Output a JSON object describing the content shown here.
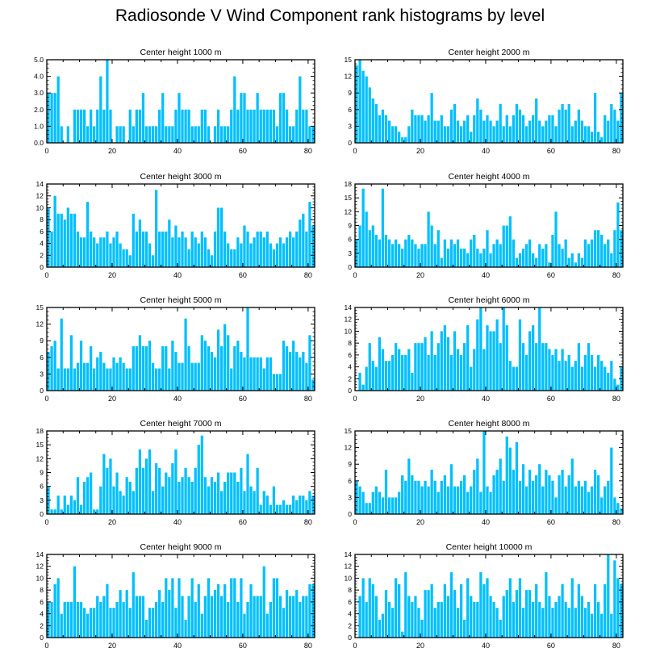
{
  "title": "Radiosonde V Wind Component rank histograms by level",
  "bar_color": "#00bfff",
  "chart_data": [
    {
      "type": "bar",
      "title": "Center height 1000 m",
      "xlim": [
        0,
        82
      ],
      "ylim": [
        0,
        5
      ],
      "xticks": [
        0,
        20,
        40,
        60,
        80
      ],
      "yticks": [
        "0.0",
        "1.0",
        "2.0",
        "3.0",
        "4.0",
        "5.0"
      ],
      "values": [
        3,
        3,
        3,
        4,
        1,
        0,
        1,
        0,
        2,
        2,
        2,
        2,
        1,
        2,
        1,
        2,
        4,
        2,
        5,
        2,
        0,
        1,
        1,
        1,
        0,
        2,
        1,
        2,
        2,
        3,
        1,
        1,
        1,
        1,
        2,
        3,
        1,
        1,
        1,
        2,
        3,
        2,
        2,
        2,
        1,
        1,
        1,
        2,
        2,
        1,
        0,
        1,
        2,
        1,
        1,
        1,
        2,
        4,
        2,
        3,
        3,
        2,
        2,
        2,
        3,
        2,
        2,
        2,
        2,
        2,
        1,
        3,
        3,
        2,
        1,
        1,
        2,
        4,
        2,
        2,
        1,
        1
      ]
    },
    {
      "type": "bar",
      "title": "Center height 2000 m",
      "xlim": [
        0,
        82
      ],
      "ylim": [
        0,
        15
      ],
      "xticks": [
        0,
        20,
        40,
        60,
        80
      ],
      "yticks": [
        "0",
        "3",
        "6",
        "9",
        "12",
        "15"
      ],
      "values": [
        14,
        15,
        13,
        12,
        10,
        8,
        7,
        5,
        6,
        5,
        4,
        3,
        3,
        2,
        1,
        1,
        3,
        6,
        5,
        5,
        5,
        4,
        5,
        9,
        4,
        4,
        5,
        3,
        3,
        6,
        7,
        4,
        3,
        4,
        5,
        2,
        5,
        8,
        6,
        4,
        5,
        4,
        3,
        4,
        7,
        3,
        5,
        3,
        5,
        7,
        6,
        5,
        3,
        4,
        5,
        8,
        4,
        3,
        4,
        5,
        5,
        3,
        6,
        7,
        6,
        7,
        3,
        4,
        6,
        4,
        3,
        3,
        2,
        9,
        2,
        1,
        5,
        4,
        7,
        6,
        4,
        9
      ]
    },
    {
      "type": "bar",
      "title": "Center height 3000 m",
      "xlim": [
        0,
        82
      ],
      "ylim": [
        0,
        14
      ],
      "xticks": [
        0,
        20,
        40,
        60,
        80
      ],
      "yticks": [
        "0",
        "2",
        "4",
        "6",
        "8",
        "10",
        "12",
        "14"
      ],
      "values": [
        10,
        6,
        12,
        9,
        9,
        8,
        10,
        9,
        9,
        6,
        5,
        5,
        11,
        6,
        5,
        4,
        5,
        5,
        6,
        4,
        5,
        6,
        4,
        3,
        3,
        2,
        9,
        6,
        8,
        6,
        6,
        4,
        2,
        13,
        6,
        6,
        6,
        8,
        5,
        7,
        5,
        6,
        5,
        3,
        6,
        5,
        4,
        6,
        5,
        3,
        2,
        6,
        10,
        10,
        6,
        4,
        3,
        3,
        5,
        4,
        7,
        6,
        4,
        5,
        6,
        6,
        5,
        6,
        4,
        3,
        4,
        5,
        4,
        5,
        6,
        5,
        6,
        8,
        9,
        6,
        11,
        7
      ]
    },
    {
      "type": "bar",
      "title": "Center height 4000 m",
      "xlim": [
        0,
        82
      ],
      "ylim": [
        0,
        18
      ],
      "xticks": [
        0,
        20,
        40,
        60,
        80
      ],
      "yticks": [
        "0",
        "3",
        "6",
        "9",
        "12",
        "15",
        "18"
      ],
      "values": [
        6,
        9,
        17,
        12,
        8,
        9,
        7,
        6,
        17,
        7,
        6,
        5,
        6,
        5,
        4,
        6,
        7,
        6,
        5,
        4,
        5,
        5,
        12,
        9,
        5,
        8,
        2,
        6,
        4,
        6,
        5,
        6,
        4,
        4,
        3,
        6,
        7,
        4,
        3,
        4,
        8,
        3,
        5,
        6,
        5,
        9,
        9,
        11,
        6,
        2,
        3,
        4,
        5,
        6,
        3,
        2,
        5,
        4,
        5,
        1,
        7,
        12,
        5,
        4,
        6,
        2,
        3,
        1,
        3,
        2,
        6,
        5,
        6,
        8,
        8,
        7,
        5,
        6,
        3,
        8,
        14,
        8
      ]
    },
    {
      "type": "bar",
      "title": "Center height 5000 m",
      "xlim": [
        0,
        82
      ],
      "ylim": [
        0,
        15
      ],
      "xticks": [
        0,
        20,
        40,
        60,
        80
      ],
      "yticks": [
        "0",
        "3",
        "6",
        "9",
        "12",
        "15"
      ],
      "values": [
        7,
        8,
        9,
        4,
        13,
        4,
        4,
        10,
        4,
        5,
        9,
        5,
        5,
        8,
        4,
        6,
        7,
        5,
        4,
        4,
        6,
        5,
        6,
        5,
        4,
        4,
        8,
        8,
        10,
        8,
        8,
        9,
        5,
        4,
        4,
        8,
        8,
        4,
        9,
        7,
        5,
        5,
        13,
        8,
        5,
        5,
        5,
        10,
        9,
        8,
        7,
        6,
        11,
        8,
        12,
        10,
        4,
        8,
        9,
        7,
        6,
        15,
        6,
        6,
        6,
        6,
        4,
        6,
        6,
        3,
        3,
        3,
        9,
        8,
        7,
        9,
        7,
        6,
        7,
        5,
        10,
        2
      ]
    },
    {
      "type": "bar",
      "title": "Center height 6000 m",
      "xlim": [
        0,
        82
      ],
      "ylim": [
        0,
        14
      ],
      "xticks": [
        0,
        20,
        40,
        60,
        80
      ],
      "yticks": [
        "0",
        "2",
        "4",
        "6",
        "8",
        "10",
        "12",
        "14"
      ],
      "values": [
        0,
        3,
        1,
        4,
        8,
        5,
        4,
        9,
        7,
        5,
        5,
        6,
        8,
        7,
        6,
        6,
        7,
        3,
        8,
        8,
        8,
        9,
        6,
        10,
        6,
        8,
        10,
        11,
        9,
        6,
        10,
        7,
        6,
        8,
        11,
        4,
        7,
        12,
        14,
        7,
        11,
        10,
        10,
        12,
        8,
        14,
        11,
        5,
        4,
        4,
        12,
        8,
        6,
        10,
        11,
        8,
        14,
        8,
        8,
        7,
        6,
        7,
        5,
        7,
        5,
        6,
        4,
        5,
        8,
        4,
        6,
        8,
        6,
        4,
        6,
        5,
        4,
        3,
        5,
        2,
        1,
        4
      ]
    },
    {
      "type": "bar",
      "title": "Center height 7000 m",
      "xlim": [
        0,
        82
      ],
      "ylim": [
        0,
        18
      ],
      "xticks": [
        0,
        20,
        40,
        60,
        80
      ],
      "yticks": [
        "0",
        "3",
        "6",
        "9",
        "12",
        "15",
        "18"
      ],
      "values": [
        6,
        1,
        1,
        4,
        1,
        4,
        2,
        4,
        3,
        8,
        2,
        7,
        8,
        9,
        1,
        1,
        6,
        13,
        10,
        12,
        6,
        9,
        5,
        4,
        8,
        7,
        5,
        10,
        14,
        10,
        12,
        14,
        5,
        11,
        10,
        6,
        9,
        8,
        11,
        14,
        7,
        8,
        10,
        8,
        7,
        10,
        15,
        17,
        8,
        6,
        8,
        7,
        9,
        5,
        7,
        9,
        9,
        9,
        7,
        10,
        5,
        13,
        6,
        5,
        10,
        2,
        5,
        4,
        2,
        6,
        2,
        2,
        3,
        2,
        2,
        4,
        3,
        4,
        4,
        3,
        5,
        4
      ]
    },
    {
      "type": "bar",
      "title": "Center height 8000 m",
      "xlim": [
        0,
        82
      ],
      "ylim": [
        0,
        15
      ],
      "xticks": [
        0,
        20,
        40,
        60,
        80
      ],
      "yticks": [
        "0",
        "3",
        "6",
        "9",
        "12",
        "15"
      ],
      "values": [
        6,
        5,
        4,
        2,
        2,
        4,
        5,
        4,
        3,
        8,
        3,
        3,
        3,
        4,
        7,
        6,
        10,
        7,
        6,
        6,
        5,
        6,
        5,
        8,
        6,
        4,
        6,
        7,
        5,
        9,
        5,
        5,
        6,
        7,
        4,
        5,
        8,
        10,
        4,
        15,
        5,
        4,
        7,
        8,
        10,
        6,
        14,
        12,
        8,
        13,
        6,
        9,
        5,
        8,
        6,
        7,
        9,
        5,
        8,
        7,
        6,
        3,
        7,
        8,
        5,
        7,
        10,
        5,
        6,
        5,
        6,
        4,
        5,
        8,
        7,
        3,
        5,
        6,
        12,
        3,
        2,
        1
      ]
    },
    {
      "type": "bar",
      "title": "Center height 9000 m",
      "xlim": [
        0,
        82
      ],
      "ylim": [
        0,
        14
      ],
      "xticks": [
        0,
        20,
        40,
        60,
        80
      ],
      "yticks": [
        "0",
        "2",
        "4",
        "6",
        "8",
        "10",
        "12",
        "14"
      ],
      "values": [
        6,
        6,
        9,
        10,
        4,
        6,
        6,
        6,
        12,
        6,
        6,
        5,
        4,
        5,
        5,
        7,
        6,
        7,
        9,
        5,
        5,
        6,
        8,
        6,
        8,
        5,
        11,
        7,
        7,
        7,
        3,
        5,
        5,
        6,
        8,
        6,
        10,
        8,
        10,
        5,
        10,
        7,
        3,
        7,
        10,
        6,
        9,
        4,
        7,
        10,
        7,
        8,
        9,
        7,
        9,
        6,
        10,
        10,
        6,
        10,
        4,
        6,
        9,
        7,
        7,
        7,
        12,
        4,
        6,
        10,
        10,
        7,
        5,
        8,
        7,
        7,
        8,
        6,
        7,
        7,
        9,
        9
      ]
    },
    {
      "type": "bar",
      "title": "Center height 10000 m",
      "xlim": [
        0,
        82
      ],
      "ylim": [
        0,
        14
      ],
      "xticks": [
        0,
        20,
        40,
        60,
        80
      ],
      "yticks": [
        "0",
        "2",
        "4",
        "6",
        "8",
        "10",
        "12",
        "14"
      ],
      "values": [
        0,
        7,
        10,
        6,
        10,
        9,
        7,
        3,
        4,
        8,
        6,
        5,
        10,
        9,
        1,
        11,
        7,
        6,
        7,
        5,
        3,
        8,
        8,
        9,
        5,
        6,
        6,
        9,
        7,
        11,
        8,
        5,
        9,
        3,
        10,
        7,
        6,
        6,
        11,
        9,
        10,
        7,
        6,
        5,
        3,
        7,
        8,
        10,
        6,
        8,
        10,
        5,
        8,
        8,
        6,
        9,
        6,
        5,
        11,
        7,
        5,
        6,
        7,
        9,
        6,
        5,
        10,
        5,
        9,
        7,
        5,
        6,
        4,
        9,
        6,
        4,
        9,
        14,
        4,
        13,
        10,
        9
      ]
    }
  ]
}
